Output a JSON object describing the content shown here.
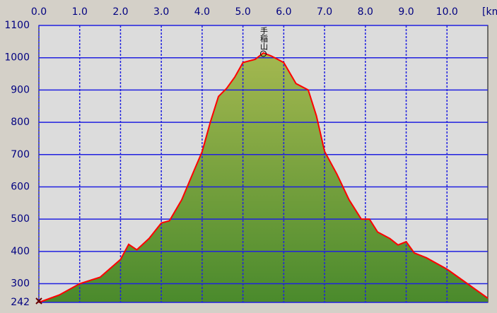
{
  "chart_data": {
    "type": "area",
    "x_label": "[km",
    "annotation": {
      "text": "手稲山",
      "x": 5.5
    },
    "x": [
      0.0,
      0.5,
      1.0,
      1.5,
      2.0,
      2.2,
      2.4,
      2.7,
      3.0,
      3.2,
      3.5,
      3.8,
      4.0,
      4.2,
      4.4,
      4.6,
      4.8,
      5.0,
      5.3,
      5.5,
      5.7,
      6.0,
      6.3,
      6.6,
      6.8,
      7.0,
      7.3,
      7.6,
      7.9,
      8.1,
      8.3,
      8.6,
      8.8,
      9.0,
      9.2,
      9.5,
      10.0,
      10.5,
      11.0
    ],
    "series": [
      {
        "color": "#ff0000",
        "fill": "#6e9e38",
        "values": [
          242,
          265,
          300,
          320,
          375,
          422,
          405,
          440,
          488,
          495,
          560,
          650,
          709,
          800,
          880,
          905,
          940,
          985,
          995,
          1015,
          1005,
          985,
          920,
          900,
          820,
          710,
          640,
          560,
          500,
          500,
          460,
          440,
          420,
          430,
          395,
          380,
          345,
          300,
          255
        ]
      }
    ],
    "xlim": [
      0,
      11
    ],
    "xticks": [
      {
        "value": 0,
        "label": "0.0"
      },
      {
        "value": 1,
        "label": "1.0"
      },
      {
        "value": 2,
        "label": "2.0"
      },
      {
        "value": 3,
        "label": "3.0"
      },
      {
        "value": 4,
        "label": "4.0"
      },
      {
        "value": 5,
        "label": "5.0"
      },
      {
        "value": 6,
        "label": "6.0"
      },
      {
        "value": 7,
        "label": "7.0"
      },
      {
        "value": 8,
        "label": "8.0"
      },
      {
        "value": 9,
        "label": "9.0"
      },
      {
        "value": 10,
        "label": "10.0"
      }
    ],
    "ylim": [
      242,
      1100
    ],
    "yticks": [
      242,
      300,
      400,
      500,
      600,
      700,
      800,
      900,
      1000,
      1100
    ],
    "grid": true
  }
}
